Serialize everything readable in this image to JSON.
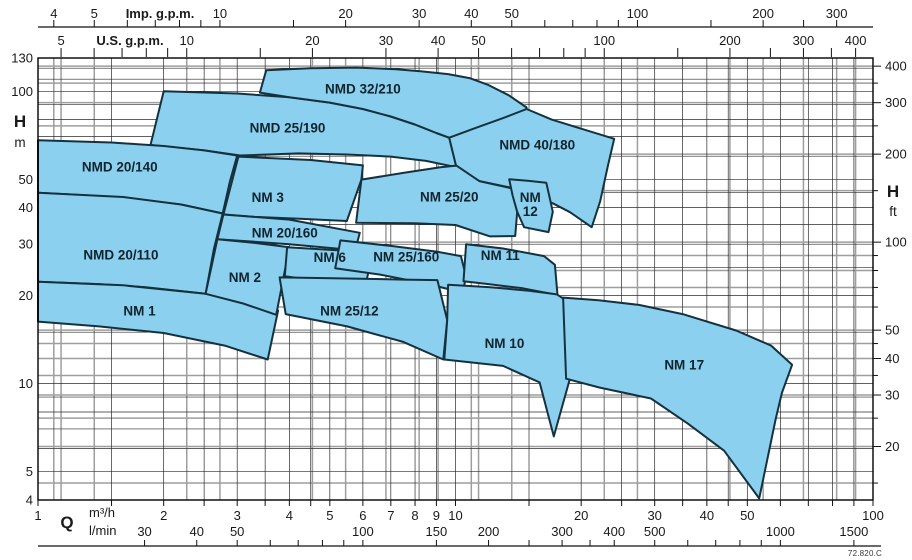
{
  "footer": {
    "code": "72.820.C"
  },
  "colors": {
    "envelope_fill": "#8BD1EF",
    "envelope_stroke": "#16313E",
    "grid_black": "#2b2b2b",
    "grid_gray": "#9e9e9e",
    "axis_black": "#111111",
    "text": "#1a1a1a",
    "label_text": "#10242E"
  },
  "chart_data": {
    "type": "area",
    "title": "Pump selection coverage chart (Q-H envelopes)",
    "q_range_m3h": [
      1,
      100
    ],
    "h_range_m": [
      4,
      130
    ],
    "x_axes": {
      "imp_gpm": {
        "label": "Imp. g.p.m.",
        "to_m3h": 0.27277,
        "major": [
          4,
          5,
          10,
          20,
          30,
          40,
          50,
          100,
          200,
          300
        ],
        "minor": [
          6,
          7,
          8,
          9,
          15,
          60,
          70,
          80,
          90,
          150,
          250
        ]
      },
      "us_gpm": {
        "label": "U.S. g.p.m.",
        "to_m3h": 0.227125,
        "major": [
          5,
          10,
          20,
          30,
          40,
          50,
          100,
          200,
          300,
          400
        ],
        "minor": [
          6,
          7,
          8,
          9,
          15,
          60,
          70,
          80,
          90,
          150,
          250,
          350
        ]
      },
      "m3h": {
        "symbol": "Q",
        "label": "m³/h",
        "major": [
          1,
          2,
          3,
          4,
          5,
          6,
          7,
          8,
          9,
          10,
          20,
          30,
          40,
          50,
          100
        ],
        "grid": [
          1,
          1.5,
          2,
          2.5,
          3,
          3.5,
          4,
          4.5,
          5,
          6,
          7,
          8,
          9,
          10,
          15,
          20,
          25,
          30,
          35,
          40,
          45,
          50,
          60,
          70,
          80,
          90,
          100
        ]
      },
      "lmin": {
        "label": "l/min",
        "to_m3h": 0.06,
        "major": [
          30,
          40,
          50,
          100,
          150,
          200,
          300,
          400,
          500,
          1000,
          1500
        ],
        "minor": [
          60,
          70,
          80,
          90,
          250,
          350,
          600,
          700,
          800,
          900
        ]
      }
    },
    "y_axes": {
      "m": {
        "title": "H",
        "unit": "m",
        "major": [
          130,
          100,
          50,
          40,
          30,
          20,
          10,
          5,
          4
        ],
        "grid": [
          4,
          5,
          6,
          7,
          8,
          9,
          10,
          15,
          20,
          25,
          30,
          35,
          40,
          45,
          50,
          60,
          70,
          80,
          90,
          100,
          110,
          120
        ]
      },
      "ft": {
        "title": "H",
        "unit": "ft",
        "to_m": 0.3048,
        "major": [
          400,
          300,
          200,
          100,
          50,
          40,
          30,
          20
        ],
        "minor": [
          350,
          250,
          150,
          90,
          80,
          70,
          60,
          45,
          35,
          25,
          15
        ]
      }
    },
    "envelopes": [
      {
        "name": "NMD 25/190",
        "label": "NMD 25/190",
        "label_q": 3.96,
        "label_h": 74.9,
        "points": [
          [
            1.86,
            65.5
          ],
          [
            2.0,
            100
          ],
          [
            3,
            98.3
          ],
          [
            4,
            95.5
          ],
          [
            5,
            91.5
          ],
          [
            6,
            87
          ],
          [
            7,
            82
          ],
          [
            8,
            77
          ],
          [
            9,
            72
          ],
          [
            9.66,
            69.4
          ],
          [
            10.05,
            55
          ],
          [
            8.5,
            57.8
          ],
          [
            7,
            59.8
          ],
          [
            5.5,
            60.8
          ],
          [
            4.2,
            61.3
          ],
          [
            3.05,
            60.3
          ],
          [
            2.5,
            62.8
          ]
        ]
      },
      {
        "name": "NMD 32/210",
        "label": "NMD 32/210",
        "label_q": 6.0,
        "label_h": 102,
        "points": [
          [
            3.4,
            99
          ],
          [
            3.52,
            118
          ],
          [
            4.5,
            120
          ],
          [
            5.8,
            120.5
          ],
          [
            7.2,
            119
          ],
          [
            8.3,
            117
          ],
          [
            9.6,
            114.5
          ],
          [
            10.8,
            111
          ],
          [
            12,
            105
          ],
          [
            13.4,
            97
          ],
          [
            14.8,
            88
          ],
          [
            14.2,
            70
          ],
          [
            12.5,
            72.5
          ],
          [
            11,
            72
          ],
          [
            9.66,
            69.4
          ],
          [
            9,
            72
          ],
          [
            8,
            77
          ],
          [
            7,
            82
          ],
          [
            6,
            87
          ],
          [
            5,
            91.5
          ],
          [
            4,
            95.5
          ]
        ]
      },
      {
        "name": "NMD 40/180",
        "label": "NMD 40/180",
        "label_q": 15.7,
        "label_h": 65.4,
        "points": [
          [
            9.66,
            69.4
          ],
          [
            11.2,
            75
          ],
          [
            13,
            81
          ],
          [
            14.8,
            87
          ],
          [
            17,
            80
          ],
          [
            20,
            74.5
          ],
          [
            24,
            68.8
          ],
          [
            23.2,
            56
          ],
          [
            22.2,
            42
          ],
          [
            21.2,
            34.3
          ],
          [
            18.8,
            38.6
          ],
          [
            17.1,
            41.4
          ],
          [
            14,
            46.4
          ],
          [
            11.4,
            49.3
          ],
          [
            10.05,
            55
          ]
        ]
      },
      {
        "name": "NMD 20/140",
        "label": "NMD 20/140",
        "label_q": 1.57,
        "label_h": 55,
        "points": [
          [
            1,
            68
          ],
          [
            1.5,
            66.8
          ],
          [
            2,
            65
          ],
          [
            2.5,
            62.8
          ],
          [
            3.0,
            60.3
          ],
          [
            2.88,
            49
          ],
          [
            2.77,
            38.2
          ],
          [
            2.2,
            41
          ],
          [
            1.5,
            43.6
          ],
          [
            1,
            45
          ]
        ]
      },
      {
        "name": "NMD 20/110",
        "label": "NMD 20/110",
        "label_q": 1.58,
        "label_h": 27.5,
        "points": [
          [
            1,
            45
          ],
          [
            1.6,
            43.5
          ],
          [
            2.2,
            41
          ],
          [
            2.77,
            38.2
          ],
          [
            2.64,
            29
          ],
          [
            2.52,
            20.3
          ],
          [
            1.8,
            21.4
          ],
          [
            1.4,
            21.9
          ],
          [
            1,
            22.3
          ]
        ]
      },
      {
        "name": "NM 1",
        "label": "NM 1",
        "label_q": 1.75,
        "label_h": 17.7,
        "points": [
          [
            1,
            22.3
          ],
          [
            1.6,
            21.7
          ],
          [
            2.52,
            20.3
          ],
          [
            3.2,
            19.1
          ],
          [
            3.76,
            17.8
          ],
          [
            3.55,
            12.1
          ],
          [
            2.8,
            13.5
          ],
          [
            2,
            14.9
          ],
          [
            1.4,
            15.7
          ],
          [
            1,
            16.3
          ]
        ]
      },
      {
        "name": "NM 3",
        "label": "NM 3",
        "label_q": 3.55,
        "label_h": 43.3,
        "points": [
          [
            3.02,
            59.8
          ],
          [
            4.5,
            58.2
          ],
          [
            6.0,
            55.8
          ],
          [
            5.95,
            49.9
          ],
          [
            5.49,
            36.0
          ],
          [
            4.3,
            36.6
          ],
          [
            3.3,
            37.2
          ],
          [
            2.78,
            37.9
          ]
        ]
      },
      {
        "name": "NM 25/20",
        "label": "NM 25/20",
        "label_q": 9.66,
        "label_h": 43.5,
        "points": [
          [
            5.95,
            49.9
          ],
          [
            7.5,
            52.6
          ],
          [
            9.2,
            55
          ],
          [
            10.05,
            55.7
          ],
          [
            11.4,
            49.3
          ],
          [
            13.6,
            46.6
          ],
          [
            14.05,
            38.7
          ],
          [
            13.9,
            32
          ],
          [
            12.1,
            31.9
          ],
          [
            10,
            34.9
          ],
          [
            8,
            35.4
          ],
          [
            5.78,
            35.5
          ]
        ]
      },
      {
        "name": "NM 12",
        "label": "NM 12",
        "label_lines": [
          "NM",
          "12"
        ],
        "label_q": 15.1,
        "label_h": 41.2,
        "points": [
          [
            13.45,
            50
          ],
          [
            15,
            49.4
          ],
          [
            16.5,
            48.7
          ],
          [
            17.1,
            38.7
          ],
          [
            16.7,
            33
          ],
          [
            14.6,
            34.3
          ],
          [
            14.05,
            38.7
          ],
          [
            13.7,
            44
          ]
        ]
      },
      {
        "name": "NM 20/160",
        "label": "NM 20/160",
        "label_q": 3.9,
        "label_h": 32.7,
        "points": [
          [
            2.78,
            37.9
          ],
          [
            4,
            36.4
          ],
          [
            5.9,
            32.8
          ],
          [
            5.75,
            28.6
          ],
          [
            4,
            30
          ],
          [
            2.69,
            31.2
          ]
        ]
      },
      {
        "name": "NM 2",
        "label": "NM 2",
        "label_q": 3.13,
        "label_h": 23.1,
        "points": [
          [
            2.69,
            31.2
          ],
          [
            3.3,
            30.3
          ],
          [
            4,
            29.3
          ],
          [
            3.72,
            17.2
          ],
          [
            3.1,
            18.8
          ],
          [
            2.52,
            20.3
          ]
        ]
      },
      {
        "name": "NM 6",
        "label": "NM 6",
        "label_q": 5.0,
        "label_h": 27.0,
        "points": [
          [
            3.95,
            29.3
          ],
          [
            5.2,
            28.6
          ],
          [
            6.3,
            27.2
          ],
          [
            6.05,
            20.8
          ],
          [
            5,
            22.2
          ],
          [
            3.9,
            23.3
          ]
        ]
      },
      {
        "name": "NM 25/160",
        "label": "NM 25/160",
        "label_q": 7.62,
        "label_h": 27.1,
        "points": [
          [
            5.3,
            30.9
          ],
          [
            7,
            29.6
          ],
          [
            9,
            28.3
          ],
          [
            10.3,
            27.3
          ],
          [
            10.6,
            23.2
          ],
          [
            10.4,
            20.5
          ],
          [
            8.5,
            22
          ],
          [
            6.6,
            23.6
          ],
          [
            5.15,
            24.8
          ]
        ]
      },
      {
        "name": "NM 11",
        "label": "NM 11",
        "label_q": 12.8,
        "label_h": 27.4,
        "points": [
          [
            10.6,
            30
          ],
          [
            13,
            29
          ],
          [
            16.3,
            27.3
          ],
          [
            17.3,
            25.5
          ],
          [
            17.55,
            20.1
          ],
          [
            14.5,
            21.2
          ],
          [
            12,
            21.9
          ],
          [
            10.45,
            22.4
          ]
        ]
      },
      {
        "name": "NM 25/12",
        "label": "NM 25/12",
        "label_q": 5.57,
        "label_h": 17.7,
        "points": [
          [
            3.79,
            23.1
          ],
          [
            5.5,
            22.9
          ],
          [
            7.5,
            22.7
          ],
          [
            9.05,
            22.6
          ],
          [
            9.55,
            16.5
          ],
          [
            9.35,
            12.1
          ],
          [
            7.5,
            13.9
          ],
          [
            5.5,
            15.7
          ],
          [
            3.92,
            17.3
          ]
        ]
      },
      {
        "name": "NM 10",
        "label": "NM 10",
        "label_q": 13.1,
        "label_h": 13.7,
        "points": [
          [
            9.6,
            21.8
          ],
          [
            12,
            21.4
          ],
          [
            15,
            20.8
          ],
          [
            17.5,
            20.2
          ],
          [
            19.3,
            18.4
          ],
          [
            20.8,
            16.7
          ],
          [
            19,
            11
          ],
          [
            17.2,
            6.6
          ],
          [
            15.9,
            10.1
          ],
          [
            13,
            11.5
          ],
          [
            9.4,
            12.1
          ],
          [
            9.55,
            16.5
          ]
        ]
      },
      {
        "name": "NM 17",
        "label": "NM 17",
        "label_q": 35.3,
        "label_h": 11.6,
        "points": [
          [
            18.1,
            19.7
          ],
          [
            22,
            19.3
          ],
          [
            27.5,
            18.6
          ],
          [
            35,
            17.3
          ],
          [
            47,
            15.2
          ],
          [
            57,
            13.5
          ],
          [
            64,
            11.6
          ],
          [
            60.5,
            9.3
          ],
          [
            58.5,
            7.6
          ],
          [
            53.4,
            4.05
          ],
          [
            44,
            5.9
          ],
          [
            36,
            7.3
          ],
          [
            29.4,
            8.9
          ],
          [
            22.1,
            9.7
          ],
          [
            18.4,
            10.4
          ]
        ]
      }
    ]
  }
}
